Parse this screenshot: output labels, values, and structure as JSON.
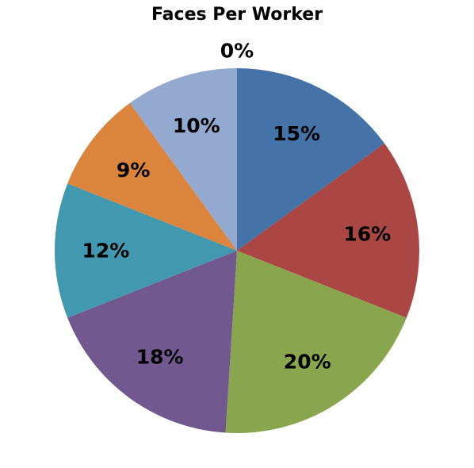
{
  "chart_data": {
    "type": "pie",
    "title": "Faces Per Worker",
    "labels_shown": "percent",
    "slices": [
      {
        "value": 15,
        "label": "15%",
        "color": "#4572A7"
      },
      {
        "value": 16,
        "label": "16%",
        "color": "#AA4643"
      },
      {
        "value": 20,
        "label": "20%",
        "color": "#89A54E"
      },
      {
        "value": 18,
        "label": "18%",
        "color": "#71588F"
      },
      {
        "value": 12,
        "label": "12%",
        "color": "#4198AF"
      },
      {
        "value": 9,
        "label": "9%",
        "color": "#DB843D"
      },
      {
        "value": 10,
        "label": "10%",
        "color": "#93A9CF"
      },
      {
        "value": 0,
        "label": "0%",
        "color": "#B9CD96"
      }
    ],
    "legend": "none"
  }
}
